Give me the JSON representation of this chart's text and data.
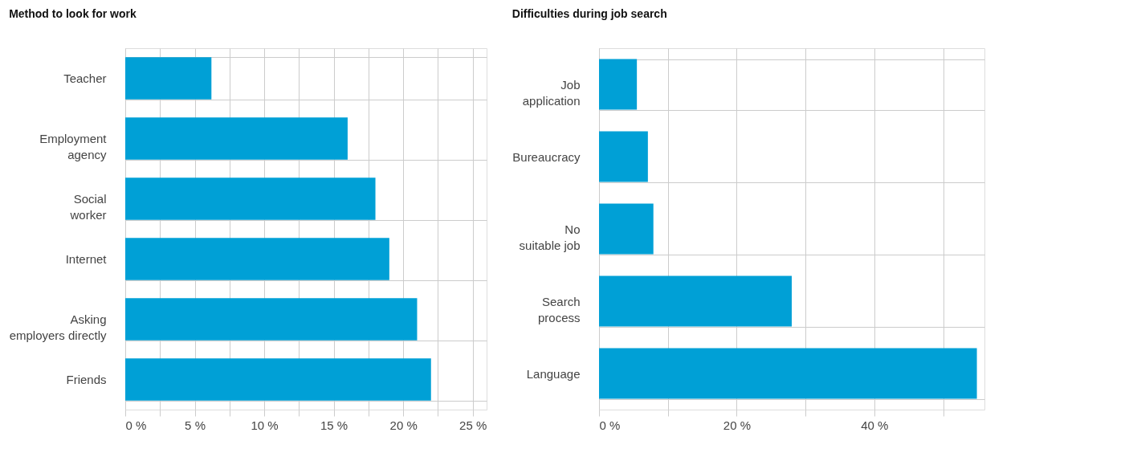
{
  "chart_data": [
    {
      "type": "bar",
      "orientation": "horizontal",
      "title": "Method to look for work",
      "categories": [
        "Teacher",
        "Employment\nagency",
        "Social\nworker",
        "Internet",
        "Asking\nemployers directly",
        "Friends"
      ],
      "values": [
        6.2,
        16.0,
        18.0,
        19.0,
        21.0,
        22.0
      ],
      "color": "#00a0d6",
      "xlim": [
        0,
        26
      ],
      "xticks": [
        {
          "value": 0,
          "label": "0 %"
        },
        {
          "value": 2.5,
          "label": null
        },
        {
          "value": 5,
          "label": "5 %"
        },
        {
          "value": 7.5,
          "label": null
        },
        {
          "value": 10,
          "label": "10 %"
        },
        {
          "value": 12.5,
          "label": null
        },
        {
          "value": 15,
          "label": "15 %"
        },
        {
          "value": 17.5,
          "label": null
        },
        {
          "value": 20,
          "label": "20 %"
        },
        {
          "value": 22.5,
          "label": null
        },
        {
          "value": 25,
          "label": "25 %"
        }
      ],
      "grid": true
    },
    {
      "type": "bar",
      "orientation": "horizontal",
      "title": "Difficulties during job search",
      "categories": [
        "Job\napplication",
        "Bureaucracy",
        "No\nsuitable job",
        "Search\nprocess",
        "Language"
      ],
      "values": [
        5.5,
        7.1,
        7.9,
        28.0,
        54.9
      ],
      "color": "#00a0d6",
      "xlim": [
        0,
        56
      ],
      "xticks": [
        {
          "value": 0,
          "label": "0 %"
        },
        {
          "value": 10,
          "label": null
        },
        {
          "value": 20,
          "label": "20 %"
        },
        {
          "value": 30,
          "label": null
        },
        {
          "value": 40,
          "label": "40 %"
        },
        {
          "value": 50,
          "label": null
        }
      ],
      "grid": true
    }
  ]
}
